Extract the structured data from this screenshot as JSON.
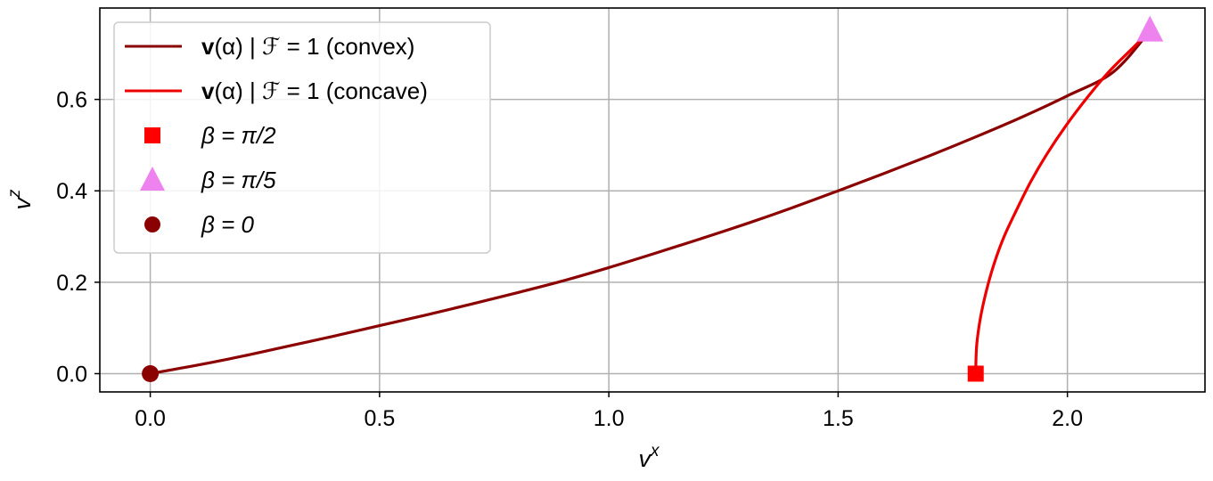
{
  "chart_data": {
    "type": "line",
    "xlabel": "v",
    "xlabel_sup": "x",
    "ylabel": "v",
    "ylabel_sup": "z",
    "xlim": [
      -0.11,
      2.3
    ],
    "ylim": [
      -0.04,
      0.8
    ],
    "xticks": [
      0.0,
      0.5,
      1.0,
      1.5,
      2.0
    ],
    "xtick_labels": [
      "0.0",
      "0.5",
      "1.0",
      "1.5",
      "2.0"
    ],
    "yticks": [
      0.0,
      0.2,
      0.4,
      0.6
    ],
    "ytick_labels": [
      "0.0",
      "0.2",
      "0.4",
      "0.6"
    ],
    "grid": true,
    "legend_position": "top-left",
    "series": [
      {
        "name": "v(α) | F = 1 (convex)",
        "label_bold": "v",
        "label_rest": "(α) | ℱ = 1 (convex)",
        "color": "#8b0000",
        "x": [
          0.0,
          0.1,
          0.2,
          0.3,
          0.4,
          0.5,
          0.6,
          0.7,
          0.8,
          0.9,
          1.0,
          1.1,
          1.2,
          1.3,
          1.4,
          1.5,
          1.6,
          1.7,
          1.8,
          1.9,
          2.0,
          2.1,
          2.18
        ],
        "y": [
          0.0,
          0.018,
          0.038,
          0.06,
          0.082,
          0.105,
          0.128,
          0.152,
          0.177,
          0.203,
          0.232,
          0.263,
          0.295,
          0.328,
          0.363,
          0.4,
          0.438,
          0.477,
          0.518,
          0.561,
          0.608,
          0.66,
          0.75
        ]
      },
      {
        "name": "v(α) | F = 1 (concave)",
        "label_bold": "v",
        "label_rest": "(α) | ℱ = 1 (concave)",
        "color": "#ee0000",
        "x": [
          1.8,
          1.802,
          1.81,
          1.823,
          1.84,
          1.862,
          1.89,
          1.92,
          1.955,
          1.995,
          2.04,
          2.09,
          2.14,
          2.18
        ],
        "y": [
          0.0,
          0.06,
          0.12,
          0.18,
          0.24,
          0.3,
          0.36,
          0.42,
          0.48,
          0.54,
          0.6,
          0.66,
          0.71,
          0.75
        ]
      }
    ],
    "markers": [
      {
        "name": "β = π/2",
        "shape": "square",
        "color": "#ff0000",
        "x": 1.8,
        "y": 0.0
      },
      {
        "name": "β = π/5",
        "shape": "triangle",
        "color": "#ee82ee",
        "x": 2.18,
        "y": 0.75
      },
      {
        "name": "β = 0",
        "shape": "circle",
        "color": "#8b0000",
        "x": 0.0,
        "y": 0.0
      }
    ]
  }
}
